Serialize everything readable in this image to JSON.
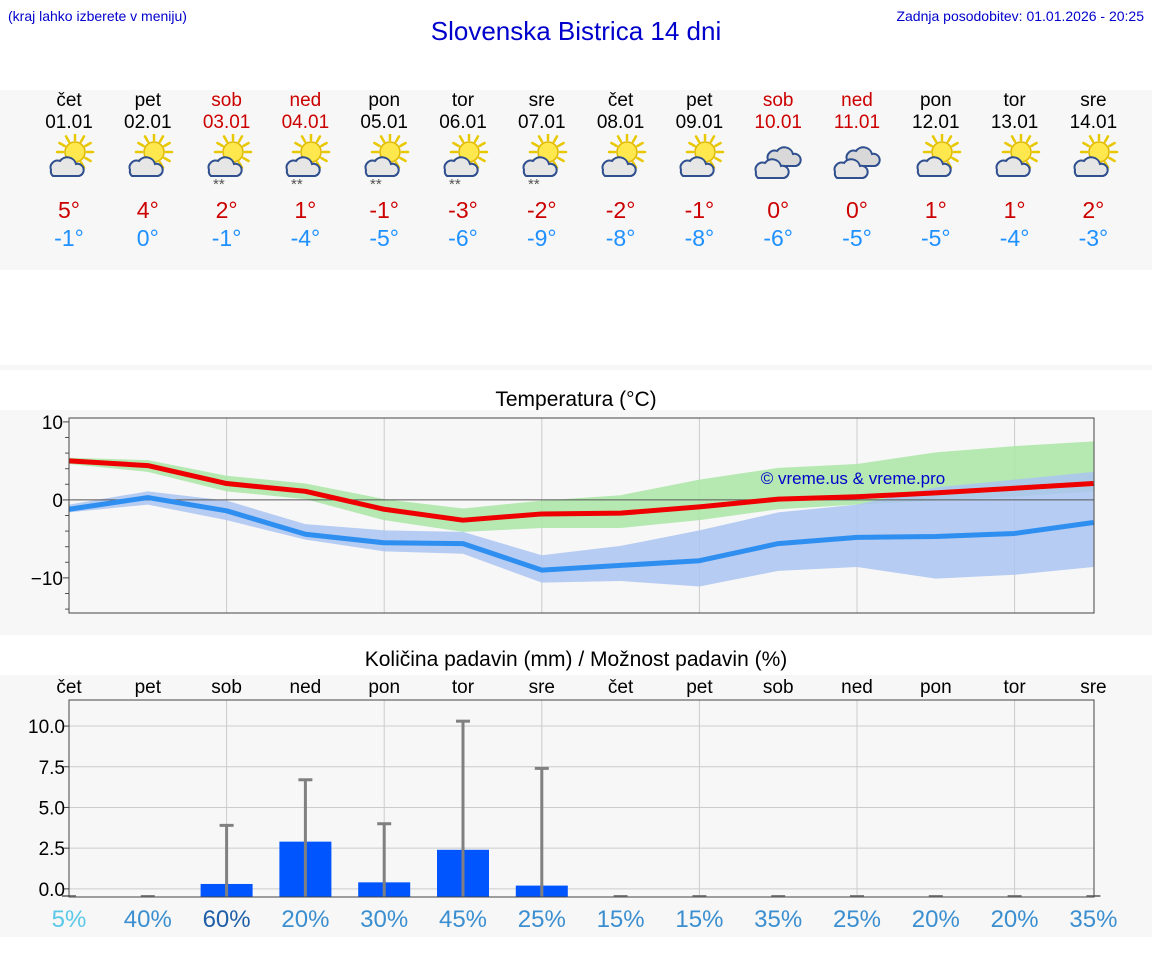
{
  "header": {
    "note": "(kraj lahko izberete v meniju)",
    "title": "Slovenska Bistrica 14 dni",
    "updated": "Zadnja posodobitev: 01.01.2026 - 20:25"
  },
  "colors": {
    "accent": "#0000cc",
    "tmax": "#cc0000",
    "tmin": "#1e90ff",
    "bar": "#0055ff",
    "band_max": "#a9e6a5",
    "band_min": "#aac4f2",
    "band_overlap": "#7fbfa8"
  },
  "days": [
    {
      "name": "čet",
      "date": "01.01",
      "weekend": false,
      "icon": "sun-cloud-icon",
      "snow": false,
      "tmax": "5°",
      "tmin": "-1°"
    },
    {
      "name": "pet",
      "date": "02.01",
      "weekend": false,
      "icon": "sun-cloud-icon",
      "snow": false,
      "tmax": "4°",
      "tmin": "0°"
    },
    {
      "name": "sob",
      "date": "03.01",
      "weekend": true,
      "icon": "sun-cloud-snow-icon",
      "snow": true,
      "tmax": "2°",
      "tmin": "-1°"
    },
    {
      "name": "ned",
      "date": "04.01",
      "weekend": true,
      "icon": "sun-cloud-snow-icon",
      "snow": true,
      "tmax": "1°",
      "tmin": "-4°"
    },
    {
      "name": "pon",
      "date": "05.01",
      "weekend": false,
      "icon": "sun-cloud-snow-icon",
      "snow": true,
      "tmax": "-1°",
      "tmin": "-5°"
    },
    {
      "name": "tor",
      "date": "06.01",
      "weekend": false,
      "icon": "sun-cloud-snow-icon",
      "snow": true,
      "tmax": "-3°",
      "tmin": "-6°"
    },
    {
      "name": "sre",
      "date": "07.01",
      "weekend": false,
      "icon": "sun-cloud-snow-icon",
      "snow": true,
      "tmax": "-2°",
      "tmin": "-9°"
    },
    {
      "name": "čet",
      "date": "08.01",
      "weekend": false,
      "icon": "sun-cloud-icon",
      "snow": false,
      "tmax": "-2°",
      "tmin": "-8°"
    },
    {
      "name": "pet",
      "date": "09.01",
      "weekend": false,
      "icon": "sun-cloud-icon",
      "snow": false,
      "tmax": "-1°",
      "tmin": "-8°"
    },
    {
      "name": "sob",
      "date": "10.01",
      "weekend": true,
      "icon": "cloudy-icon",
      "snow": false,
      "tmax": "0°",
      "tmin": "-6°"
    },
    {
      "name": "ned",
      "date": "11.01",
      "weekend": true,
      "icon": "cloudy-icon",
      "snow": false,
      "tmax": "0°",
      "tmin": "-5°"
    },
    {
      "name": "pon",
      "date": "12.01",
      "weekend": false,
      "icon": "sun-cloud-icon",
      "snow": false,
      "tmax": "1°",
      "tmin": "-5°"
    },
    {
      "name": "tor",
      "date": "13.01",
      "weekend": false,
      "icon": "sun-cloud-icon",
      "snow": false,
      "tmax": "1°",
      "tmin": "-4°"
    },
    {
      "name": "sre",
      "date": "14.01",
      "weekend": false,
      "icon": "sun-cloud-icon",
      "snow": false,
      "tmax": "2°",
      "tmin": "-3°"
    }
  ],
  "chart_data": [
    {
      "type": "line",
      "title": "Temperatura (°C)",
      "watermark": "© vreme.us & vreme.pro",
      "ylim": [
        -14.5,
        10.5
      ],
      "yticks": [
        10,
        0,
        -10
      ],
      "ytick_labels": [
        "10",
        "0",
        "−10"
      ],
      "x": [
        0,
        1,
        2,
        3,
        4,
        5,
        6,
        7,
        8,
        9,
        10,
        11,
        12,
        13
      ],
      "series": [
        {
          "name": "max",
          "color": "#ee0000",
          "values": [
            5,
            4.4,
            2.1,
            1.1,
            -1.2,
            -2.6,
            -1.8,
            -1.7,
            -0.9,
            0.1,
            0.4,
            0.9,
            1.5,
            2.1
          ]
        },
        {
          "name": "min",
          "color": "#2f8ff0",
          "values": [
            -1.2,
            0.3,
            -1.4,
            -4.4,
            -5.5,
            -5.6,
            -9,
            -8.4,
            -7.8,
            -5.6,
            -4.8,
            -4.7,
            -4.3,
            -2.9
          ]
        }
      ],
      "bands": [
        {
          "name": "max-range",
          "color": "#a9e6a5",
          "lower": [
            4.6,
            3.6,
            1.1,
            0.1,
            -2.6,
            -4.1,
            -3.6,
            -3.6,
            -2.6,
            -1.2,
            -0.6,
            -0.1,
            0.4,
            1.1
          ],
          "upper": [
            5.4,
            5.1,
            3.1,
            2.1,
            0.1,
            -1.1,
            -0.1,
            0.6,
            2.6,
            4.1,
            4.6,
            6.1,
            6.9,
            7.5
          ]
        },
        {
          "name": "min-range",
          "color": "#aac4f2",
          "lower": [
            -1.6,
            -0.6,
            -2.6,
            -5.1,
            -6.6,
            -6.9,
            -10.6,
            -10.4,
            -11.1,
            -9.1,
            -8.6,
            -10.1,
            -9.6,
            -8.6
          ],
          "upper": [
            -0.6,
            1.1,
            -0.1,
            -3.1,
            -3.9,
            -4.1,
            -7.1,
            -5.9,
            -3.9,
            -1.6,
            -0.6,
            1.6,
            2.6,
            3.6
          ]
        }
      ]
    },
    {
      "type": "bar",
      "title": "Količina padavin (mm) / Možnost padavin (%)",
      "categories": [
        "čet",
        "pet",
        "sob",
        "ned",
        "pon",
        "tor",
        "sre",
        "čet",
        "pet",
        "sob",
        "ned",
        "pon",
        "tor",
        "sre"
      ],
      "values": [
        0,
        0,
        0.3,
        2.9,
        0.4,
        2.4,
        0.2,
        0,
        0,
        0,
        0,
        0,
        0,
        0
      ],
      "max_values": [
        0,
        0,
        3.9,
        6.7,
        4.0,
        10.3,
        7.4,
        0,
        0,
        0,
        0,
        0,
        0,
        0
      ],
      "probabilities": [
        "5%",
        "40%",
        "60%",
        "20%",
        "30%",
        "45%",
        "25%",
        "15%",
        "15%",
        "35%",
        "25%",
        "20%",
        "20%",
        "35%"
      ],
      "prob_colors": [
        "#5bc8e8",
        "#3b8fd0",
        "#1f5fa8",
        "#3b8fd0",
        "#3b8fd0",
        "#3b8fd0",
        "#3b8fd0",
        "#3b8fd0",
        "#3b8fd0",
        "#3b8fd0",
        "#3b8fd0",
        "#3b8fd0",
        "#3b8fd0",
        "#3b8fd0"
      ],
      "ylim": [
        -0.5,
        11.6
      ],
      "yticks": [
        0,
        2.5,
        5.0,
        7.5,
        10.0
      ],
      "ytick_labels": [
        "0.0",
        "2.5",
        "5.0",
        "7.5",
        "10.0"
      ]
    }
  ]
}
